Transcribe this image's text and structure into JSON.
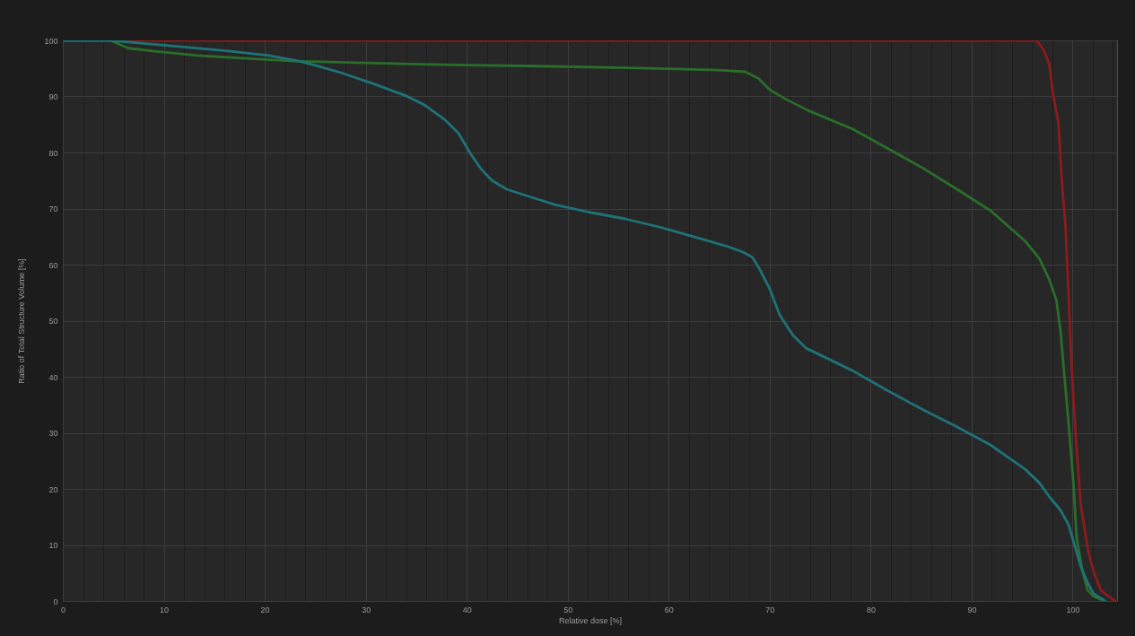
{
  "chart_data": {
    "type": "line",
    "xlabel": "Relative dose [%]",
    "ylabel": "Ratio of Total Structure Volume [%]",
    "xlim": [
      0,
      104.4
    ],
    "ylim": [
      0,
      100
    ],
    "xticks": [
      0,
      {
        "value": 2,
        "label": null
      },
      {
        "value": 4,
        "label": null
      },
      {
        "value": 6,
        "label": null
      },
      {
        "value": 8,
        "label": null
      },
      10,
      {
        "value": 12,
        "label": null
      },
      {
        "value": 14,
        "label": null
      },
      {
        "value": 16,
        "label": null
      },
      {
        "value": 18,
        "label": null
      },
      20,
      {
        "value": 22,
        "label": null
      },
      {
        "value": 24,
        "label": null
      },
      {
        "value": 26,
        "label": null
      },
      {
        "value": 28,
        "label": null
      },
      30,
      {
        "value": 32,
        "label": null
      },
      {
        "value": 34,
        "label": null
      },
      {
        "value": 36,
        "label": null
      },
      {
        "value": 38,
        "label": null
      },
      40,
      {
        "value": 42,
        "label": null
      },
      {
        "value": 44,
        "label": null
      },
      {
        "value": 46,
        "label": null
      },
      {
        "value": 48,
        "label": null
      },
      50,
      {
        "value": 52,
        "label": null
      },
      {
        "value": 54,
        "label": null
      },
      {
        "value": 56,
        "label": null
      },
      {
        "value": 58,
        "label": null
      },
      60,
      {
        "value": 62,
        "label": null
      },
      {
        "value": 64,
        "label": null
      },
      {
        "value": 66,
        "label": null
      },
      {
        "value": 68,
        "label": null
      },
      70,
      {
        "value": 72,
        "label": null
      },
      {
        "value": 74,
        "label": null
      },
      {
        "value": 76,
        "label": null
      },
      {
        "value": 78,
        "label": null
      },
      80,
      {
        "value": 82,
        "label": null
      },
      {
        "value": 84,
        "label": null
      },
      {
        "value": 86,
        "label": null
      },
      {
        "value": 88,
        "label": null
      },
      90,
      {
        "value": 92,
        "label": null
      },
      {
        "value": 94,
        "label": null
      },
      {
        "value": 96,
        "label": null
      },
      {
        "value": 98,
        "label": null
      },
      100,
      {
        "value": 102,
        "label": null
      },
      {
        "value": 104,
        "label": null
      }
    ],
    "yticks": [
      0,
      10,
      20,
      30,
      40,
      50,
      60,
      70,
      80,
      90,
      100
    ],
    "grid": true,
    "series": [
      {
        "color": "#8c1c1c",
        "x": [
          0,
          96.4,
          97.1,
          97.7,
          98,
          98.6,
          98.9,
          99.3,
          99.6,
          99.9,
          100.3,
          100.8,
          101.5,
          102.1,
          102.8,
          104.2
        ],
        "values": [
          100,
          100,
          98.4,
          95.7,
          91.2,
          85.1,
          75.8,
          66.6,
          54.2,
          41.9,
          29.6,
          17.3,
          9.3,
          5.1,
          1.9,
          0
        ]
      },
      {
        "color": "#2a6e2a",
        "x": [
          0,
          4.7,
          6.5,
          8.9,
          13.3,
          22.8,
          36.4,
          47.1,
          56,
          64.9,
          67.6,
          68.9,
          70,
          71.6,
          73.8,
          78.2,
          81.6,
          85.1,
          88.4,
          91.9,
          95.3,
          96.7,
          97.7,
          98.4,
          98.8,
          99.1,
          99.4,
          99.7,
          100.1,
          100.4,
          101,
          101.5,
          102.1,
          103.2
        ],
        "values": [
          100,
          100,
          98.6,
          98.1,
          97.3,
          96.3,
          95.7,
          95.4,
          95.1,
          94.7,
          94.4,
          93.2,
          91.2,
          89.5,
          87.5,
          84.2,
          80.8,
          77.3,
          73.6,
          69.6,
          64.2,
          61.1,
          57.3,
          53.6,
          48.2,
          41.9,
          35.8,
          29.6,
          20.5,
          11.2,
          5.1,
          1.9,
          0.8,
          0
        ]
      },
      {
        "color": "#1e7378",
        "x": [
          0,
          4.7,
          7.7,
          12.7,
          16.4,
          20.4,
          23.4,
          25.1,
          27.6,
          30.7,
          34,
          35.8,
          37.8,
          39.2,
          40.3,
          41.4,
          42.5,
          44,
          46.1,
          48.7,
          52,
          55.6,
          59.3,
          63.4,
          65.9,
          67.4,
          68.3,
          69,
          70,
          71,
          72.3,
          73.6,
          78.2,
          81.6,
          85.1,
          88.4,
          91.9,
          95.3,
          96.7,
          97.7,
          98.8,
          99.6,
          100.3,
          100.8,
          101.5,
          102.1,
          102.8,
          103.2
        ],
        "values": [
          100,
          100,
          99.5,
          98.7,
          98.1,
          97.3,
          96.3,
          95.5,
          94.2,
          92.3,
          90.1,
          88.5,
          85.9,
          83.4,
          80,
          77.1,
          75,
          73.4,
          72.2,
          70.7,
          69.4,
          68.2,
          66.6,
          64.5,
          63.2,
          62.2,
          61.3,
          59.2,
          55.7,
          51,
          47.4,
          45.1,
          41.1,
          37.6,
          34.2,
          31.2,
          27.8,
          23.5,
          21.1,
          18.6,
          16.2,
          13.6,
          9.3,
          6.2,
          3.2,
          1.3,
          0.5,
          0
        ]
      }
    ]
  }
}
